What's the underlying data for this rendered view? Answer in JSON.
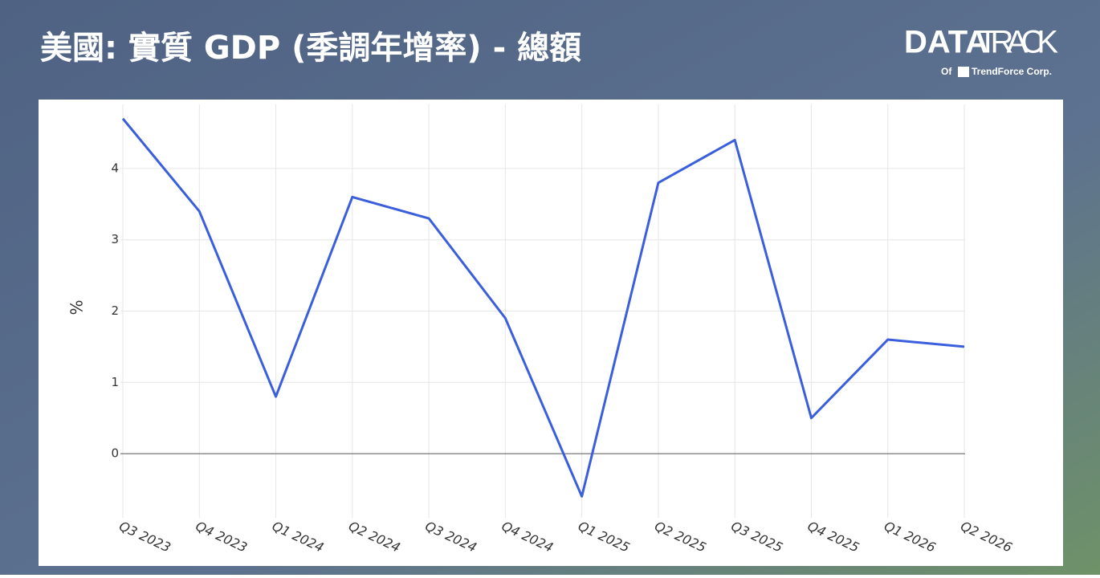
{
  "logo": {
    "brand_bold": "DATA",
    "brand_light": "TRACK",
    "of": "Of",
    "company": "TrendForce Corp."
  },
  "chart_data": {
    "type": "line",
    "title": "美國: 實質 GDP (季調年增率) - 總額",
    "y_label": "%",
    "categories": [
      "Q3 2023",
      "Q4 2023",
      "Q1 2024",
      "Q2 2024",
      "Q3 2024",
      "Q4 2024",
      "Q1 2025",
      "Q2 2025",
      "Q3 2025",
      "Q4 2025",
      "Q1 2026",
      "Q2 2026"
    ],
    "series": [
      {
        "name": "美國: 實質 GDP (季調年增率) - 總額",
        "color": "#3b5fdc",
        "values": [
          4.7,
          3.4,
          0.8,
          3.6,
          3.3,
          1.9,
          -0.6,
          3.8,
          4.4,
          0.5,
          1.6,
          1.5
        ]
      }
    ],
    "ylim": [
      -0.9,
      4.9
    ],
    "yticks": [
      0,
      1,
      2,
      3,
      4
    ],
    "grid": true
  }
}
